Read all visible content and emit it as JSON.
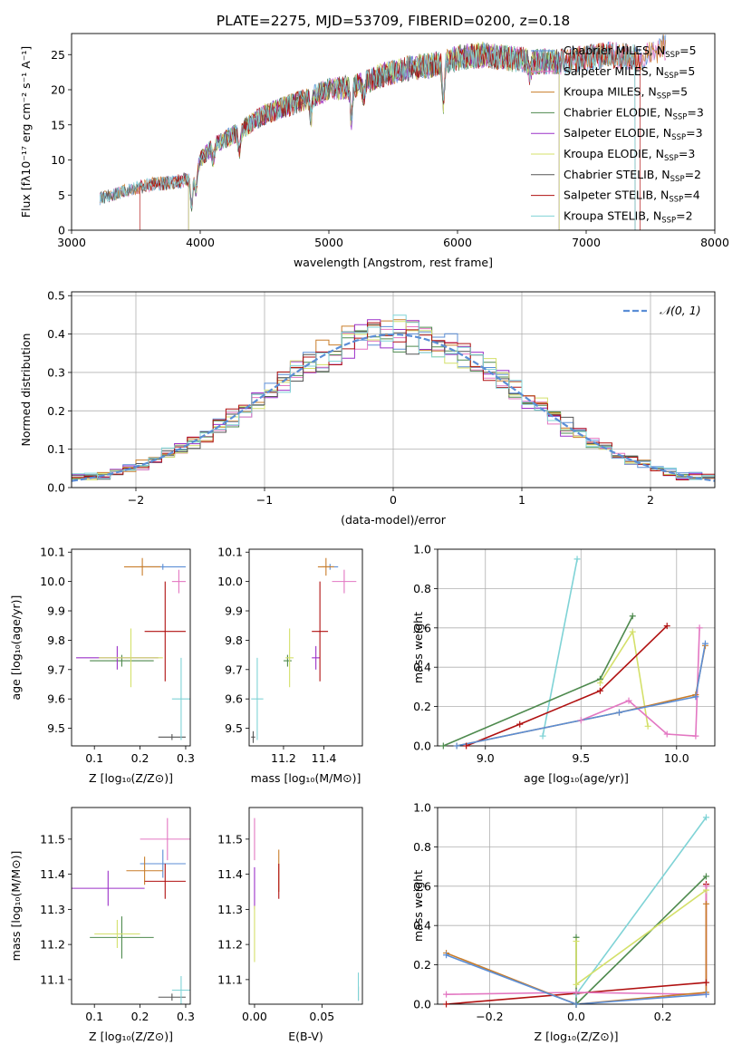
{
  "title": "PLATE=2275, MJD=53709, FIBERID=0200, z=0.18",
  "colors": {
    "chabrier_miles": "#5b8ed6",
    "salpeter_miles": "#e377c2",
    "kroupa_miles": "#c97d2a",
    "chabrier_elodie": "#4e8a4e",
    "salpeter_elodie": "#9b30c8",
    "kroupa_elodie": "#d4e06a",
    "chabrier_stelib": "#555555",
    "salpeter_stelib": "#b01010",
    "kroupa_stelib": "#7fd3d6",
    "gauss": "#5b8ed6"
  },
  "legend_spectrum": [
    {
      "key": "chabrier_miles",
      "prefix": "Chabrier MILES, N",
      "suffix": "=5"
    },
    {
      "key": "salpeter_miles",
      "prefix": "Salpeter MILES, N",
      "suffix": "=5"
    },
    {
      "key": "kroupa_miles",
      "prefix": "Kroupa MILES, N",
      "suffix": "=5"
    },
    {
      "key": "chabrier_elodie",
      "prefix": "Chabrier ELODIE, N",
      "suffix": "=3"
    },
    {
      "key": "salpeter_elodie",
      "prefix": "Salpeter ELODIE, N",
      "suffix": "=3"
    },
    {
      "key": "kroupa_elodie",
      "prefix": "Kroupa ELODIE, N",
      "suffix": "=3"
    },
    {
      "key": "chabrier_stelib",
      "prefix": "Chabrier STELIB, N",
      "suffix": "=2"
    },
    {
      "key": "salpeter_stelib",
      "prefix": "Salpeter STELIB, N",
      "suffix": "=4"
    },
    {
      "key": "kroupa_stelib",
      "prefix": "Kroupa STELIB, N",
      "suffix": "=2"
    }
  ],
  "legend_sub": "SSP",
  "legend_gauss": "𝒩(0, 1)",
  "chart_data": [
    {
      "id": "spectrum",
      "type": "line",
      "xlabel": "wavelength [Angstrom, rest frame]",
      "ylabel": "Flux [fλ10⁻¹⁷ erg cm⁻² s⁻¹ A⁻¹]",
      "xlim": [
        3000,
        8000
      ],
      "ylim": [
        0,
        28
      ],
      "xticks": [
        3000,
        4000,
        5000,
        6000,
        7000,
        8000
      ],
      "yticks": [
        0,
        5,
        10,
        15,
        20,
        25
      ],
      "continuum": [
        [
          3220,
          4.5
        ],
        [
          3400,
          5.5
        ],
        [
          3600,
          6.5
        ],
        [
          3800,
          6.8
        ],
        [
          3950,
          7.5
        ],
        [
          4000,
          10
        ],
        [
          4100,
          12
        ],
        [
          4300,
          14
        ],
        [
          4500,
          16.5
        ],
        [
          4800,
          18.5
        ],
        [
          5000,
          20
        ],
        [
          5200,
          20.5
        ],
        [
          5400,
          22
        ],
        [
          5600,
          23
        ],
        [
          5800,
          23.5
        ],
        [
          6000,
          24.5
        ],
        [
          6200,
          25
        ],
        [
          6400,
          24.5
        ],
        [
          6600,
          24
        ],
        [
          6800,
          24
        ],
        [
          7000,
          24.5
        ],
        [
          7200,
          25
        ],
        [
          7400,
          24.5
        ],
        [
          7600,
          26
        ]
      ],
      "absorption_dips": [
        [
          3933,
          -4
        ],
        [
          3968,
          -3
        ],
        [
          4101,
          -2
        ],
        [
          4304,
          -3
        ],
        [
          4861,
          -3
        ],
        [
          5175,
          -5
        ],
        [
          5270,
          -2
        ],
        [
          5890,
          -6
        ],
        [
          6563,
          -2
        ]
      ]
    },
    {
      "id": "residual_hist",
      "type": "step",
      "xlabel": "(data-model)/error",
      "ylabel": "Normed distribution",
      "xlim": [
        -2.5,
        2.5
      ],
      "ylim": [
        0,
        0.51
      ],
      "xticks": [
        -2,
        -1,
        0,
        1,
        2
      ],
      "yticks": [
        0,
        0.1,
        0.2,
        0.3,
        0.4,
        0.5
      ],
      "bin_width": 0.1
    },
    {
      "id": "age_vs_Z",
      "type": "errorbar",
      "xlabel": "Z [log₁₀(Z/Z⊙)]",
      "ylabel": "age  [log₁₀(age/yr)]",
      "xlim": [
        0.05,
        0.31
      ],
      "ylim": [
        9.44,
        10.11
      ],
      "xticks": [
        0.1,
        0.2,
        0.3
      ],
      "yticks": [
        9.5,
        9.6,
        9.7,
        9.8,
        9.9,
        10.0,
        10.1
      ],
      "points": [
        {
          "k": "chabrier_miles",
          "x": 0.25,
          "y": 10.05,
          "xe": 0.05,
          "ye": 0.01
        },
        {
          "k": "salpeter_miles",
          "x": 0.285,
          "y": 10.0,
          "xe": 0.015,
          "ye": 0.04
        },
        {
          "k": "kroupa_miles",
          "x": 0.205,
          "y": 10.05,
          "xe": 0.04,
          "ye": 0.03
        },
        {
          "k": "chabrier_elodie",
          "x": 0.16,
          "y": 9.73,
          "xe": 0.07,
          "ye": 0.02
        },
        {
          "k": "salpeter_elodie",
          "x": 0.15,
          "y": 9.74,
          "xe": 0.09,
          "ye": 0.04
        },
        {
          "k": "kroupa_elodie",
          "x": 0.18,
          "y": 9.74,
          "xe": 0.07,
          "ye": 0.1
        },
        {
          "k": "chabrier_stelib",
          "x": 0.27,
          "y": 9.47,
          "xe": 0.03,
          "ye": 0.01
        },
        {
          "k": "salpeter_stelib",
          "x": 0.255,
          "y": 9.83,
          "xe": 0.045,
          "ye": 0.17
        },
        {
          "k": "kroupa_stelib",
          "x": 0.29,
          "y": 9.6,
          "xe": 0.02,
          "ye": 0.14
        }
      ]
    },
    {
      "id": "age_vs_mass",
      "type": "errorbar",
      "xlabel": "mass [log₁₀(M/M⊙)]",
      "ylabel": "",
      "xlim": [
        11.03,
        11.59
      ],
      "ylim": [
        9.44,
        10.11
      ],
      "xticks": [
        11.2,
        11.4
      ],
      "yticks": [
        9.5,
        9.6,
        9.7,
        9.8,
        9.9,
        10.0,
        10.1
      ],
      "points": [
        {
          "k": "chabrier_miles",
          "x": 11.43,
          "y": 10.05,
          "xe": 0.04,
          "ye": 0.01
        },
        {
          "k": "salpeter_miles",
          "x": 11.5,
          "y": 10.0,
          "xe": 0.06,
          "ye": 0.04
        },
        {
          "k": "kroupa_miles",
          "x": 11.41,
          "y": 10.05,
          "xe": 0.04,
          "ye": 0.03
        },
        {
          "k": "chabrier_elodie",
          "x": 11.22,
          "y": 9.73,
          "xe": 0.02,
          "ye": 0.02
        },
        {
          "k": "salpeter_elodie",
          "x": 11.36,
          "y": 9.74,
          "xe": 0.02,
          "ye": 0.04
        },
        {
          "k": "kroupa_elodie",
          "x": 11.23,
          "y": 9.74,
          "xe": 0.02,
          "ye": 0.1
        },
        {
          "k": "chabrier_stelib",
          "x": 11.05,
          "y": 9.47,
          "xe": 0.01,
          "ye": 0.02
        },
        {
          "k": "salpeter_stelib",
          "x": 11.38,
          "y": 9.83,
          "xe": 0.04,
          "ye": 0.17
        },
        {
          "k": "kroupa_stelib",
          "x": 11.07,
          "y": 9.6,
          "xe": 0.03,
          "ye": 0.14
        }
      ]
    },
    {
      "id": "mass_weight_vs_age",
      "type": "line",
      "xlabel": "age  [log₁₀(age/yr)]",
      "ylabel": "mass weight",
      "xlim": [
        8.75,
        10.2
      ],
      "ylim": [
        0,
        1.0
      ],
      "xticks": [
        9.0,
        9.5,
        10.0
      ],
      "yticks": [
        0.0,
        0.2,
        0.4,
        0.6,
        0.8,
        1.0
      ],
      "series": [
        {
          "k": "kroupa_stelib",
          "x": [
            9.3,
            9.48
          ],
          "y": [
            0.05,
            0.95
          ]
        },
        {
          "k": "chabrier_elodie",
          "x": [
            8.78,
            9.6,
            9.77
          ],
          "y": [
            0.0,
            0.34,
            0.66
          ]
        },
        {
          "k": "kroupa_elodie",
          "x": [
            9.6,
            9.77,
            9.85
          ],
          "y": [
            0.32,
            0.58,
            0.1
          ]
        },
        {
          "k": "salpeter_stelib",
          "x": [
            8.9,
            9.18,
            9.6,
            9.95
          ],
          "y": [
            0.0,
            0.11,
            0.28,
            0.61
          ]
        },
        {
          "k": "salpeter_miles",
          "x": [
            9.5,
            9.75,
            9.95,
            10.1,
            10.12
          ],
          "y": [
            0.13,
            0.23,
            0.06,
            0.05,
            0.6
          ]
        },
        {
          "k": "kroupa_miles",
          "x": [
            8.85,
            9.7,
            10.1,
            10.15
          ],
          "y": [
            0.0,
            0.17,
            0.26,
            0.51
          ]
        },
        {
          "k": "chabrier_miles",
          "x": [
            8.85,
            9.7,
            10.1,
            10.15
          ],
          "y": [
            0.0,
            0.17,
            0.25,
            0.52
          ]
        }
      ]
    },
    {
      "id": "mass_vs_Z",
      "type": "errorbar",
      "xlabel": "Z [log₁₀(Z/Z⊙)]",
      "ylabel": "mass [log₁₀(M/M⊙)]",
      "xlim": [
        0.05,
        0.31
      ],
      "ylim": [
        11.03,
        11.59
      ],
      "xticks": [
        0.1,
        0.2,
        0.3
      ],
      "yticks": [
        11.1,
        11.2,
        11.3,
        11.4,
        11.5
      ],
      "points": [
        {
          "k": "chabrier_miles",
          "x": 0.25,
          "y": 11.43,
          "xe": 0.05,
          "ye": 0.04
        },
        {
          "k": "salpeter_miles",
          "x": 0.26,
          "y": 11.5,
          "xe": 0.06,
          "ye": 0.06
        },
        {
          "k": "kroupa_miles",
          "x": 0.21,
          "y": 11.41,
          "xe": 0.04,
          "ye": 0.04
        },
        {
          "k": "chabrier_elodie",
          "x": 0.16,
          "y": 11.22,
          "xe": 0.07,
          "ye": 0.06
        },
        {
          "k": "salpeter_elodie",
          "x": 0.13,
          "y": 11.36,
          "xe": 0.08,
          "ye": 0.05
        },
        {
          "k": "kroupa_elodie",
          "x": 0.15,
          "y": 11.23,
          "xe": 0.05,
          "ye": 0.04
        },
        {
          "k": "chabrier_stelib",
          "x": 0.27,
          "y": 11.05,
          "xe": 0.03,
          "ye": 0.01
        },
        {
          "k": "salpeter_stelib",
          "x": 0.255,
          "y": 11.38,
          "xe": 0.045,
          "ye": 0.05
        },
        {
          "k": "kroupa_stelib",
          "x": 0.29,
          "y": 11.07,
          "xe": 0.02,
          "ye": 0.04
        }
      ]
    },
    {
      "id": "mass_vs_ebv",
      "type": "errorbar",
      "xlabel": "E(B-V)",
      "ylabel": "",
      "xlim": [
        -0.004,
        0.08
      ],
      "ylim": [
        11.03,
        11.59
      ],
      "xticks": [
        0.0,
        0.05
      ],
      "yticks": [
        11.1,
        11.2,
        11.3,
        11.4,
        11.5
      ],
      "points": [
        {
          "k": "salpeter_miles",
          "x": 0.0,
          "y": 11.5,
          "xe": 0,
          "ye": 0.06
        },
        {
          "k": "kroupa_miles",
          "x": 0.018,
          "y": 11.41,
          "xe": 0,
          "ye": 0.06
        },
        {
          "k": "salpeter_elodie",
          "x": 0.0,
          "y": 11.36,
          "xe": 0,
          "ye": 0.06
        },
        {
          "k": "kroupa_elodie",
          "x": 0.0,
          "y": 11.23,
          "xe": 0,
          "ye": 0.08
        },
        {
          "k": "salpeter_stelib",
          "x": 0.018,
          "y": 11.38,
          "xe": 0,
          "ye": 0.05
        },
        {
          "k": "chabrier_stelib",
          "x": 0.077,
          "y": 11.06,
          "xe": 0,
          "ye": 0.02
        },
        {
          "k": "kroupa_stelib",
          "x": 0.077,
          "y": 11.08,
          "xe": 0,
          "ye": 0.04
        }
      ]
    },
    {
      "id": "mass_weight_vs_Z",
      "type": "line",
      "xlabel": "Z [log₁₀(Z/Z⊙)]",
      "ylabel": "mass weight",
      "xlim": [
        -0.32,
        0.32
      ],
      "ylim": [
        0,
        1.0
      ],
      "xticks": [
        -0.2,
        0.0,
        0.2
      ],
      "yticks": [
        0.0,
        0.2,
        0.4,
        0.6,
        0.8,
        1.0
      ],
      "series": [
        {
          "k": "kroupa_stelib",
          "x": [
            0.0,
            0.3
          ],
          "y": [
            0.05,
            0.95
          ]
        },
        {
          "k": "chabrier_elodie",
          "x": [
            0.0,
            0.3
          ],
          "y": [
            0.0,
            0.65
          ]
        },
        {
          "k": "chabrier_elodie",
          "x": [
            0.0,
            0.0
          ],
          "y": [
            0.0,
            0.34
          ]
        },
        {
          "k": "kroupa_elodie",
          "x": [
            0.0,
            0.0,
            0.3
          ],
          "y": [
            0.32,
            0.1,
            0.58
          ]
        },
        {
          "k": "salpeter_stelib",
          "x": [
            -0.3,
            0.3,
            0.3
          ],
          "y": [
            0.0,
            0.11,
            0.61
          ]
        },
        {
          "k": "salpeter_miles",
          "x": [
            -0.3,
            0.0,
            0.3,
            0.3
          ],
          "y": [
            0.05,
            0.06,
            0.05,
            0.6
          ]
        },
        {
          "k": "kroupa_miles",
          "x": [
            -0.3,
            0.0,
            0.3,
            0.3
          ],
          "y": [
            0.26,
            0.0,
            0.06,
            0.51
          ]
        },
        {
          "k": "chabrier_miles",
          "x": [
            -0.3,
            0.0,
            0.3
          ],
          "y": [
            0.25,
            0.0,
            0.05
          ]
        }
      ]
    }
  ]
}
